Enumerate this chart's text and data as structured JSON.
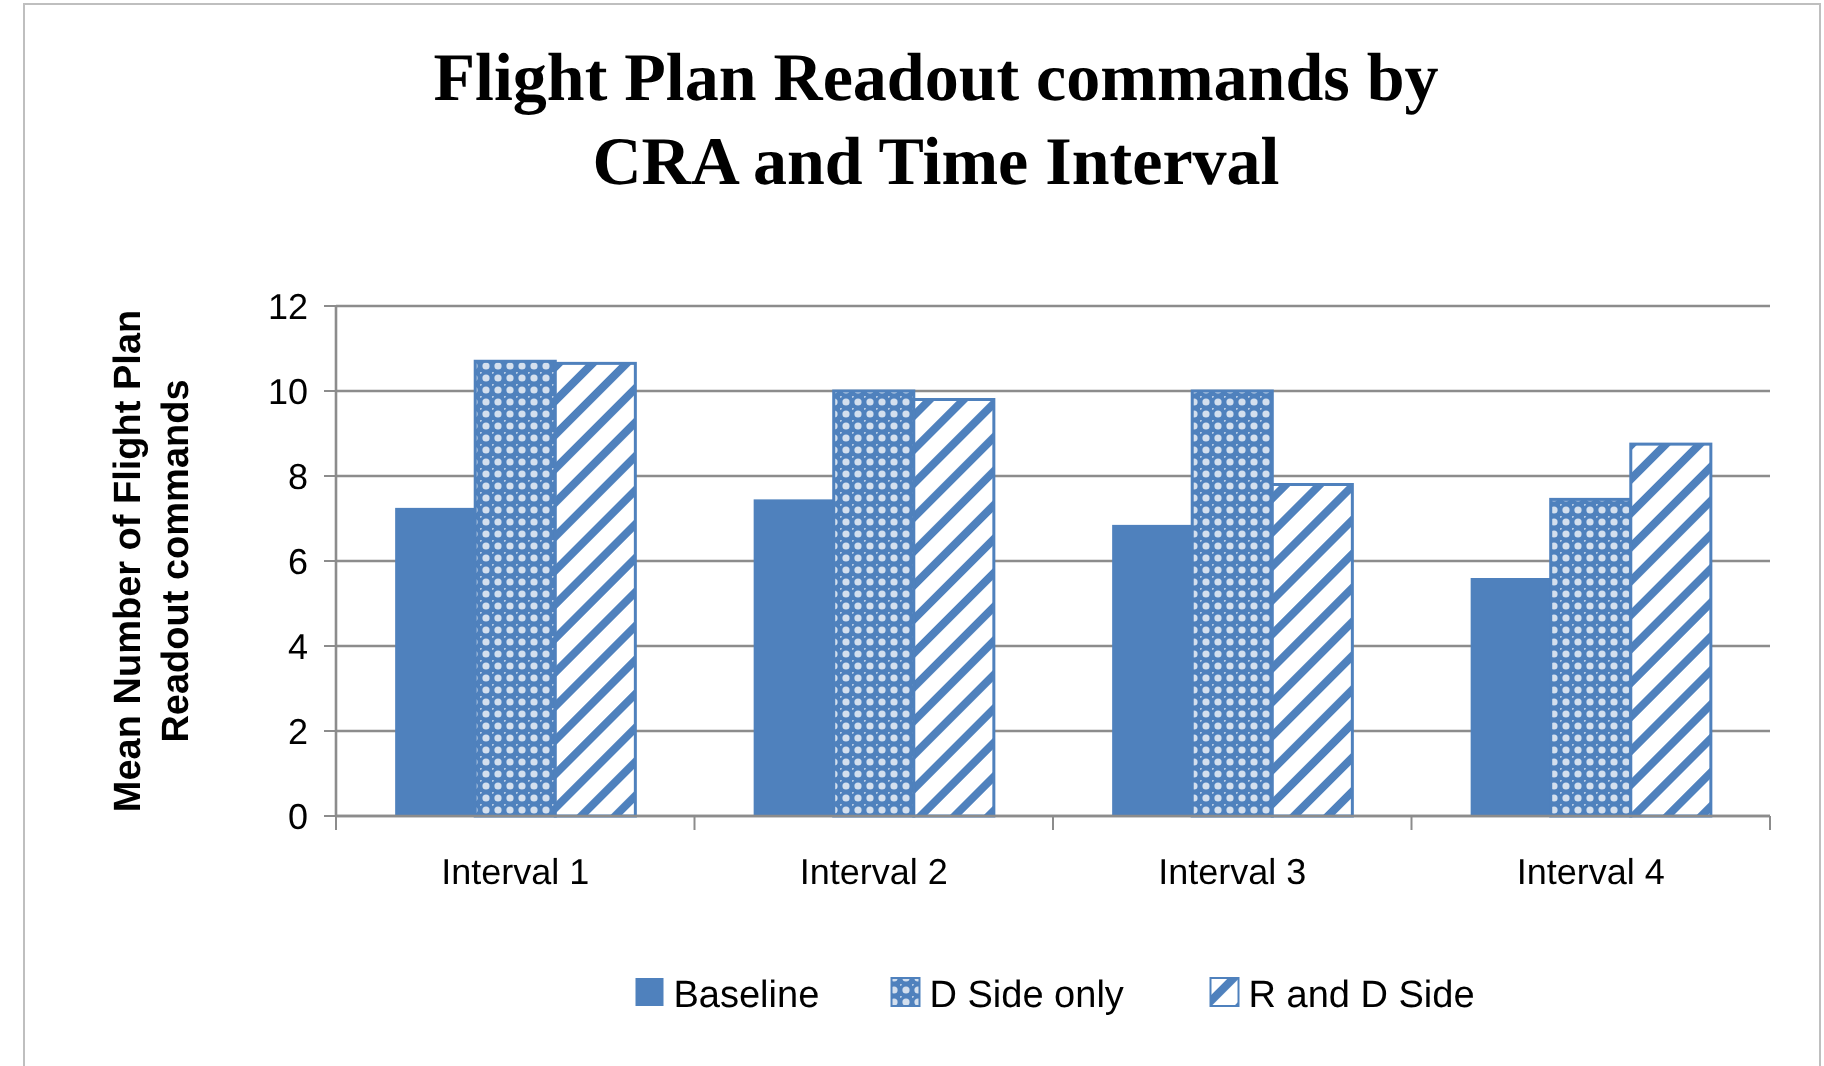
{
  "chart_data": {
    "type": "bar",
    "title": "Flight Plan Readout commands by\nCRA and Time Interval",
    "ylabel": "Mean Number of Flight Plan\nReadout commands",
    "categories": [
      "Interval 1",
      "Interval 2",
      "Interval 3",
      "Interval 4"
    ],
    "series": [
      {
        "name": "Baseline",
        "color": "#4f81bd",
        "values": [
          7.25,
          7.45,
          6.85,
          5.6
        ]
      },
      {
        "name": "D Side only",
        "color": "#4f81bd",
        "values": [
          10.7,
          10.0,
          10.0,
          7.45
        ]
      },
      {
        "name": "R and D Side",
        "color": "#4f81bd",
        "values": [
          10.65,
          9.8,
          7.8,
          8.75
        ]
      }
    ],
    "ylim": [
      0,
      12
    ],
    "yticks": [
      0,
      2,
      4,
      6,
      8,
      10,
      12
    ],
    "grid": "y",
    "legend": "bottom"
  }
}
